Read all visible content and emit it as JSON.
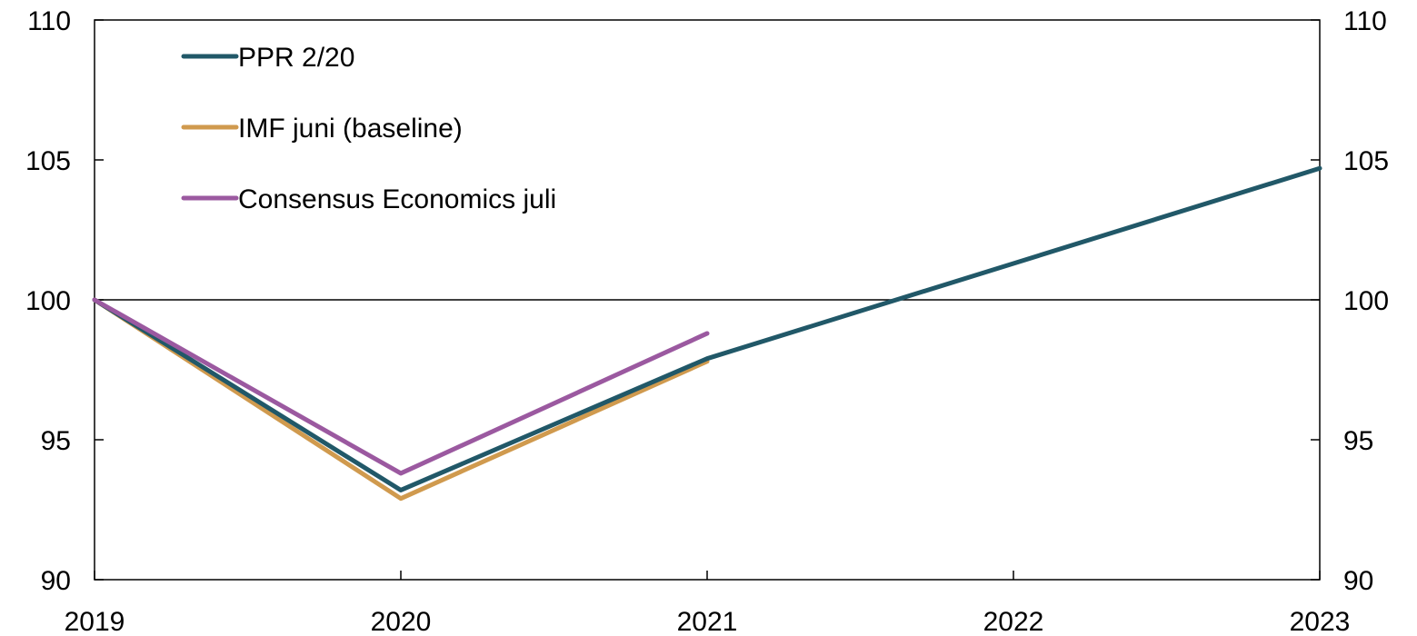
{
  "chart_data": {
    "type": "line",
    "title": "",
    "xlabel": "",
    "ylabel": "",
    "xlim": [
      2019,
      2023
    ],
    "ylim": [
      90,
      110
    ],
    "x_ticks": [
      "2019",
      "2020",
      "2021",
      "2022",
      "2023"
    ],
    "y_ticks": [
      "90",
      "95",
      "100",
      "105",
      "110"
    ],
    "y_axis_right_duplicate": true,
    "reference_line": 100,
    "grid": false,
    "legend_placement": "top-left",
    "series": [
      {
        "name": "PPR 2/20",
        "color": "#215868",
        "x": [
          2019,
          2020,
          2021,
          2022,
          2023
        ],
        "values": [
          100,
          93.2,
          97.9,
          101.3,
          104.7
        ]
      },
      {
        "name": "IMF juni (baseline)",
        "color": "#d09a4e",
        "x": [
          2019,
          2020,
          2021
        ],
        "values": [
          100,
          92.9,
          97.8
        ]
      },
      {
        "name": "Consensus Economics juli",
        "color": "#9b59a0",
        "x": [
          2019,
          2020,
          2021
        ],
        "values": [
          100,
          93.8,
          98.8
        ]
      }
    ]
  }
}
